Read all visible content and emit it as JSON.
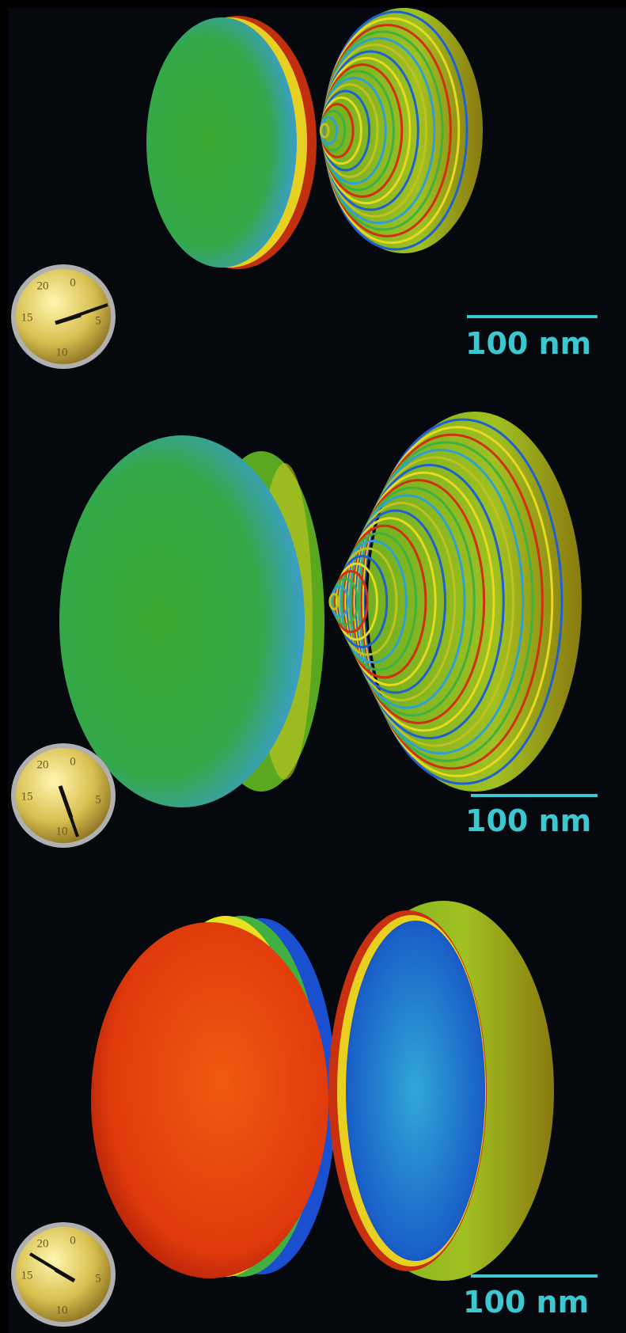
{
  "panels": [
    {
      "scale_label": "100 nm",
      "clock_labels": [
        "20",
        "0",
        "15",
        "5",
        "10"
      ]
    },
    {
      "scale_label": "100 nm",
      "clock_labels": [
        "20",
        "0",
        "15",
        "5",
        "10"
      ]
    },
    {
      "scale_label": "100 nm",
      "clock_labels": [
        "20",
        "0",
        "15",
        "5",
        "10"
      ]
    }
  ]
}
